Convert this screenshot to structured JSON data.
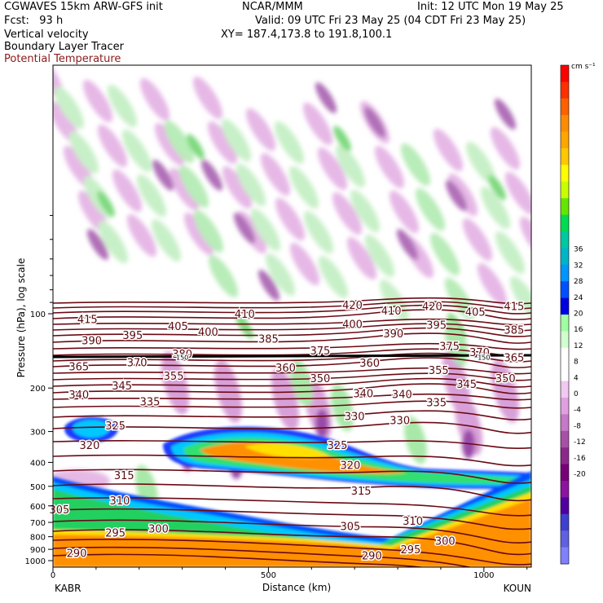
{
  "header": {
    "model": "CGWAVES 15km ARW-GFS init",
    "center": "NCAR/MMM",
    "init": "Init: 12 UTC Mon 19 May 25",
    "fcst": "Fcst:   93 h",
    "valid": "Valid: 09 UTC Fri 23 May 25 (04 CDT Fri 23 May 25)",
    "field1": "Vertical velocity",
    "xy": "XY= 187.4,173.8 to 191.8,100.1",
    "field2": "Boundary Layer Tracer",
    "field3": "Potential Temperature",
    "field3_color": "#8b1a1a"
  },
  "chart_data": {
    "type": "heatmap",
    "title": "Vertical velocity",
    "xlabel": "Distance (km)",
    "ylabel": "Pressure (hPa), log scale",
    "x_ticks": [
      0,
      500,
      1000
    ],
    "xlim": [
      0,
      1110
    ],
    "y_ticks": [
      100,
      200,
      300,
      400,
      500,
      600,
      700,
      800,
      900,
      1000
    ],
    "y_scale": "log",
    "endpoints": {
      "left": "KABR",
      "right": "KOUN"
    },
    "colorbar": {
      "units": "cm s⁻¹",
      "labels": [
        36,
        32,
        28,
        24,
        20,
        16,
        12,
        8,
        4,
        0,
        -4,
        -8,
        -12,
        -16,
        -20
      ],
      "colors": [
        "#ff0000",
        "#ff3000",
        "#ff6000",
        "#ff8c00",
        "#ffa500",
        "#ffc800",
        "#ffff00",
        "#c8ff00",
        "#64e600",
        "#00dc50",
        "#00c8a0",
        "#00b4c8",
        "#0096ff",
        "#0050ff",
        "#0000e0",
        "#a0ffa0",
        "#d0ffd0",
        "#ffffff",
        "#ffffff",
        "#f0c8f0",
        "#e0a0e0",
        "#c878c8",
        "#a850a8",
        "#8c288c",
        "#780078",
        "#8c14a0",
        "#5000a0",
        "#4040d0",
        "#6060e0",
        "#8080ff"
      ]
    },
    "contour_labels": [
      {
        "label": "415",
        "x": 80,
        "p": 105
      },
      {
        "label": "410",
        "x": 445,
        "p": 100
      },
      {
        "label": "420",
        "x": 695,
        "p": 92
      },
      {
        "label": "410",
        "x": 785,
        "p": 97
      },
      {
        "label": "420",
        "x": 880,
        "p": 93
      },
      {
        "label": "405",
        "x": 980,
        "p": 98
      },
      {
        "label": "415",
        "x": 1070,
        "p": 93
      },
      {
        "label": "390",
        "x": 90,
        "p": 128
      },
      {
        "label": "395",
        "x": 185,
        "p": 122
      },
      {
        "label": "405",
        "x": 290,
        "p": 112
      },
      {
        "label": "400",
        "x": 360,
        "p": 118
      },
      {
        "label": "385",
        "x": 500,
        "p": 126
      },
      {
        "label": "400",
        "x": 695,
        "p": 110
      },
      {
        "label": "390",
        "x": 790,
        "p": 120
      },
      {
        "label": "395",
        "x": 890,
        "p": 111
      },
      {
        "label": "385",
        "x": 1070,
        "p": 116
      },
      {
        "label": "380",
        "x": 300,
        "p": 145
      },
      {
        "label": "375",
        "x": 620,
        "p": 141
      },
      {
        "label": "375",
        "x": 920,
        "p": 135
      },
      {
        "label": "370",
        "x": 990,
        "p": 143
      },
      {
        "label": "365",
        "x": 1070,
        "p": 150
      },
      {
        "label": "365",
        "x": 60,
        "p": 163
      },
      {
        "label": "370",
        "x": 195,
        "p": 157
      },
      {
        "label": "360",
        "x": 540,
        "p": 165
      },
      {
        "label": "360",
        "x": 735,
        "p": 158
      },
      {
        "label": "355",
        "x": 280,
        "p": 178
      },
      {
        "label": "350",
        "x": 620,
        "p": 182
      },
      {
        "label": "355",
        "x": 895,
        "p": 169
      },
      {
        "label": "345",
        "x": 160,
        "p": 195
      },
      {
        "label": "350",
        "x": 1050,
        "p": 182
      },
      {
        "label": "345",
        "x": 960,
        "p": 192
      },
      {
        "label": "340",
        "x": 60,
        "p": 212
      },
      {
        "label": "340",
        "x": 720,
        "p": 210
      },
      {
        "label": "340",
        "x": 810,
        "p": 211
      },
      {
        "label": "335",
        "x": 225,
        "p": 226
      },
      {
        "label": "335",
        "x": 890,
        "p": 228
      },
      {
        "label": "330",
        "x": 700,
        "p": 260
      },
      {
        "label": "330",
        "x": 805,
        "p": 270
      },
      {
        "label": "325",
        "x": 145,
        "p": 283
      },
      {
        "label": "325",
        "x": 660,
        "p": 340
      },
      {
        "label": "320",
        "x": 85,
        "p": 340
      },
      {
        "label": "320",
        "x": 690,
        "p": 410
      },
      {
        "label": "315",
        "x": 165,
        "p": 450
      },
      {
        "label": "315",
        "x": 715,
        "p": 520
      },
      {
        "label": "310",
        "x": 155,
        "p": 570
      },
      {
        "label": "310",
        "x": 835,
        "p": 690
      },
      {
        "label": "305",
        "x": 15,
        "p": 620
      },
      {
        "label": "305",
        "x": 690,
        "p": 725
      },
      {
        "label": "300",
        "x": 245,
        "p": 740
      },
      {
        "label": "300",
        "x": 910,
        "p": 830
      },
      {
        "label": "295",
        "x": 145,
        "p": 770
      },
      {
        "label": "295",
        "x": 830,
        "p": 900
      },
      {
        "label": "290",
        "x": 55,
        "p": 930
      },
      {
        "label": "290",
        "x": 740,
        "p": 950
      }
    ],
    "tropopause_labels": [
      {
        "label": "150",
        "x": 300,
        "p": 150
      },
      {
        "label": "150",
        "x": 1000,
        "p": 150
      }
    ]
  }
}
